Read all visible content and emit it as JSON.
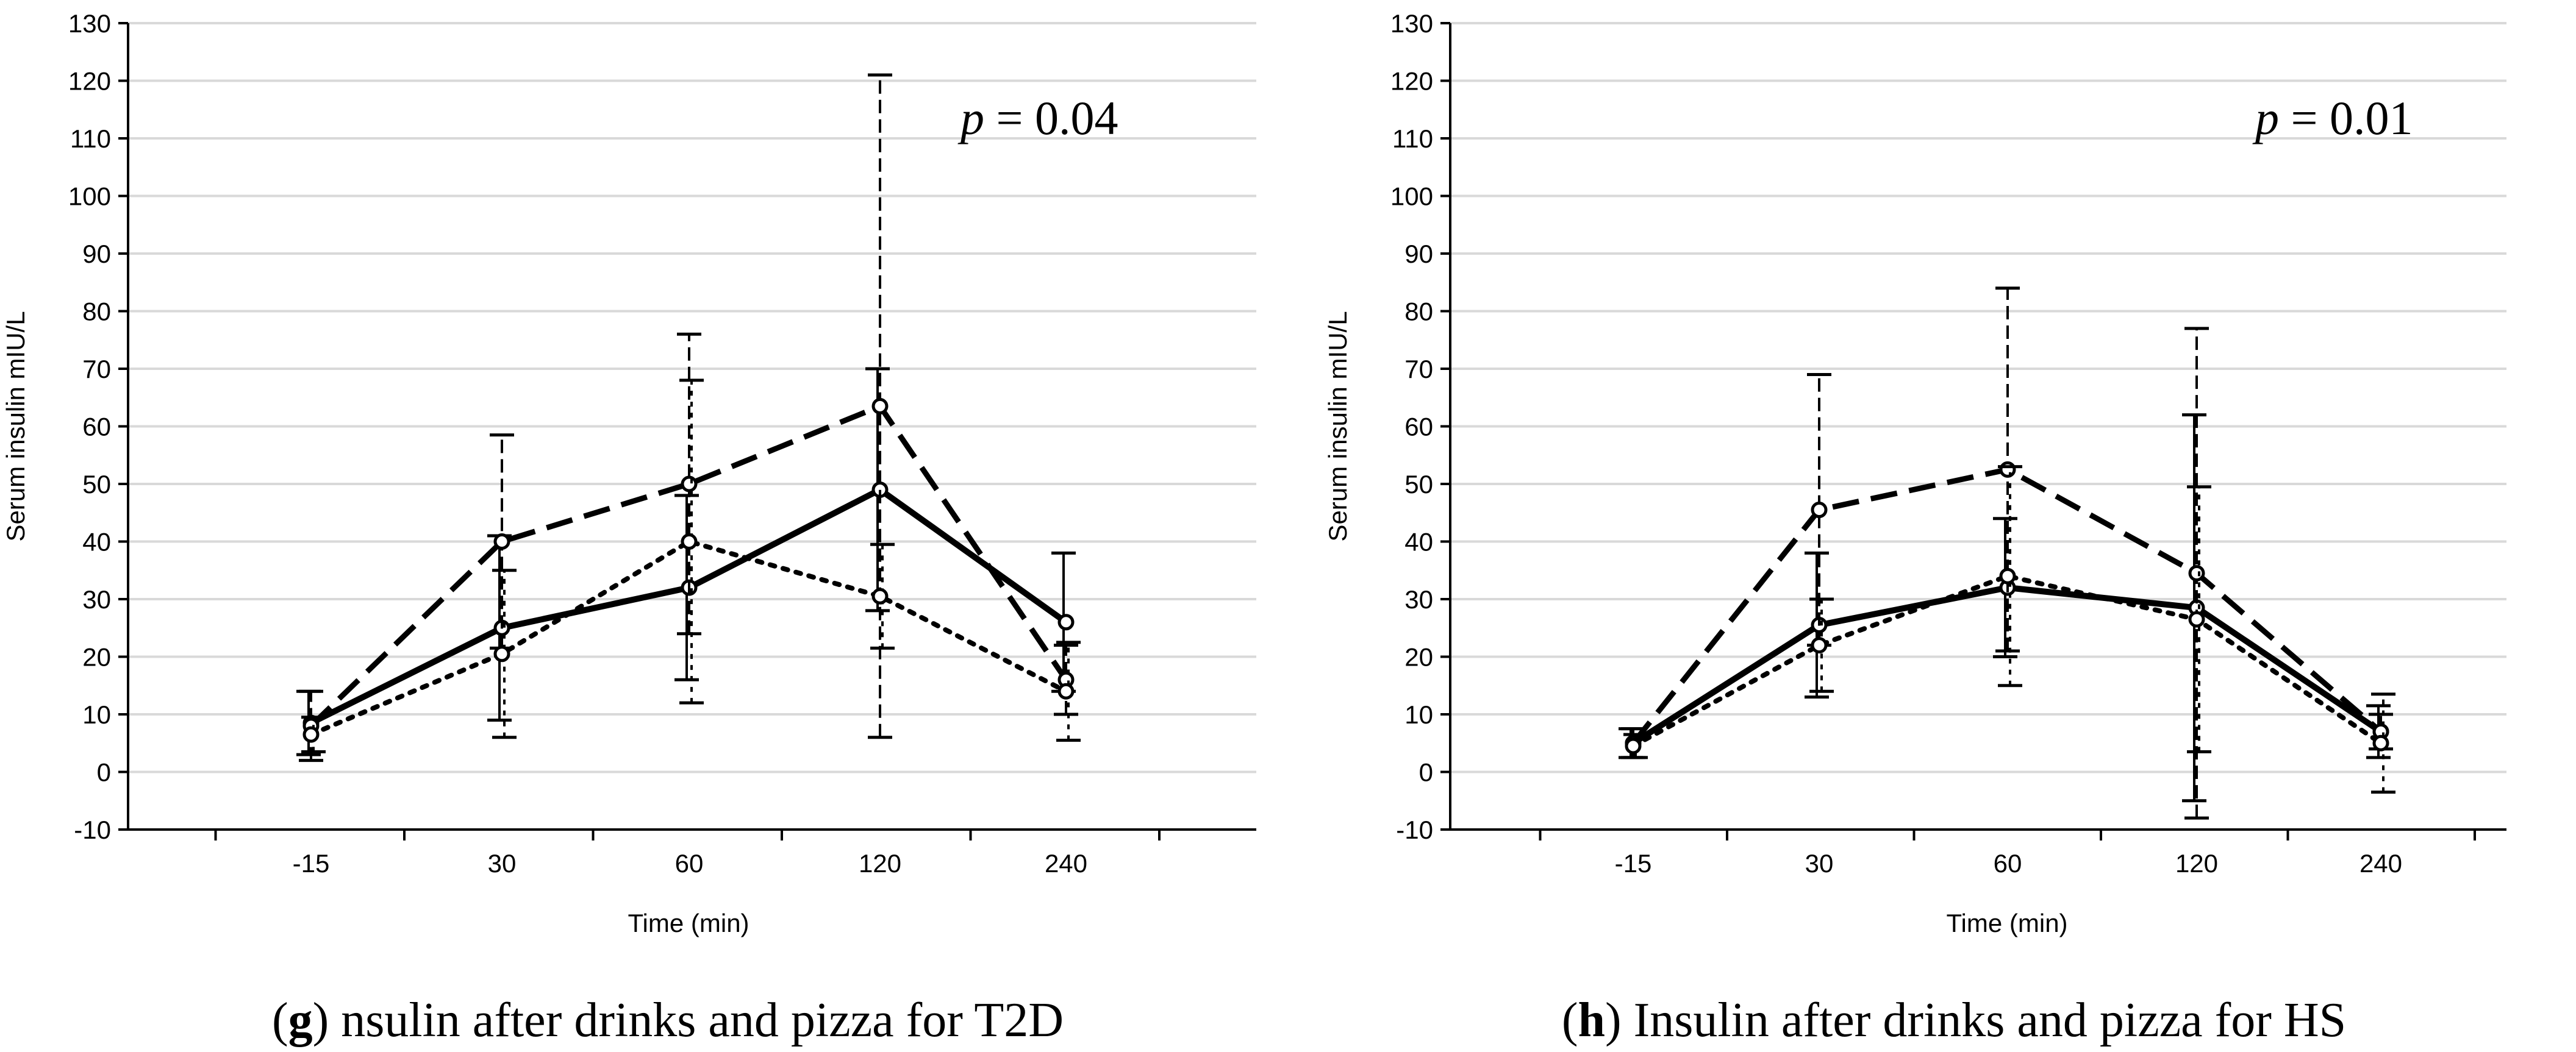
{
  "chart_data": [
    {
      "type": "line",
      "panel_letter": "g",
      "caption": "nsulin after drinks and pizza for T2D",
      "annotation": {
        "italic": "p",
        "rest": " = 0.04"
      },
      "xlabel": "Time (min)",
      "ylabel": "Serum insulin mIU/L",
      "categories": [
        "-15",
        "30",
        "60",
        "120",
        "240"
      ],
      "ylim": [
        -10,
        130
      ],
      "yticks": [
        -10,
        0,
        10,
        20,
        30,
        40,
        50,
        60,
        70,
        80,
        90,
        100,
        110,
        120,
        130
      ],
      "grid": true,
      "series": [
        {
          "name": "solid",
          "style": "solid",
          "values": [
            8.5,
            25,
            32,
            49,
            26
          ],
          "err": [
            5.5,
            16,
            16,
            21,
            12
          ]
        },
        {
          "name": "dashed",
          "style": "dashed",
          "values": [
            8,
            40,
            50,
            63.5,
            16
          ],
          "err": [
            6,
            18.5,
            26,
            57.5,
            6
          ]
        },
        {
          "name": "dotted",
          "style": "dotted",
          "values": [
            6.5,
            20.5,
            40,
            30.5,
            14
          ],
          "err": [
            3,
            14.5,
            28,
            9,
            8.5
          ]
        }
      ]
    },
    {
      "type": "line",
      "panel_letter": "h",
      "caption": "Insulin after drinks and pizza for HS",
      "annotation": {
        "italic": "p",
        "rest": " = 0.01"
      },
      "xlabel": "Time (min)",
      "ylabel": "Serum insulin mIU/L",
      "categories": [
        "-15",
        "30",
        "60",
        "120",
        "240"
      ],
      "ylim": [
        -10,
        130
      ],
      "yticks": [
        -10,
        0,
        10,
        20,
        30,
        40,
        50,
        60,
        70,
        80,
        90,
        100,
        110,
        120,
        130
      ],
      "grid": true,
      "series": [
        {
          "name": "solid",
          "style": "solid",
          "values": [
            5,
            25.5,
            32,
            28.5,
            7
          ],
          "err": [
            2.5,
            12.5,
            12,
            33.5,
            4.5
          ]
        },
        {
          "name": "dashed",
          "style": "dashed",
          "values": [
            5,
            45.5,
            52.5,
            34.5,
            7
          ],
          "err": [
            2.5,
            23.5,
            31.5,
            42.5,
            3
          ]
        },
        {
          "name": "dotted",
          "style": "dotted",
          "values": [
            4.5,
            22,
            34,
            26.5,
            5
          ],
          "err": [
            2,
            8,
            19,
            23,
            8.5
          ]
        }
      ]
    }
  ]
}
